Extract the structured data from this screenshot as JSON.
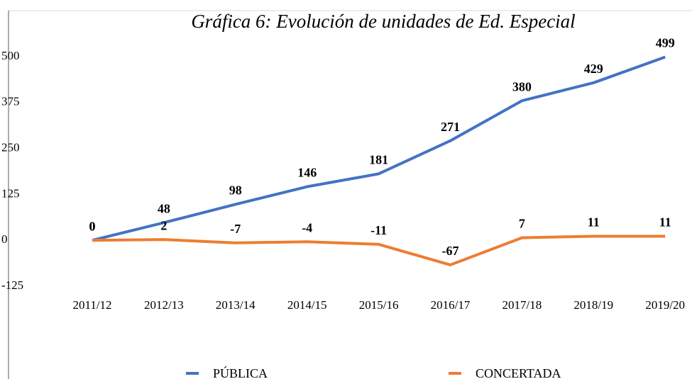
{
  "chart_data": {
    "type": "line",
    "title": "Gráfica 6: Evolución de unidades de Ed. Especial",
    "categories": [
      "2011/12",
      "2012/13",
      "2013/14",
      "2014/15",
      "2015/16",
      "2016/17",
      "2017/18",
      "2018/19",
      "2019/20"
    ],
    "series": [
      {
        "name": "PÚBLICA",
        "color": "#4472c4",
        "values": [
          0,
          48,
          98,
          146,
          181,
          271,
          380,
          429,
          499
        ]
      },
      {
        "name": "CONCERTADA",
        "color": "#ed7d31",
        "values": [
          0,
          2,
          -7,
          -4,
          -11,
          -67,
          7,
          11,
          11
        ]
      }
    ],
    "ylim": [
      -125,
      500
    ],
    "yticks": [
      -125,
      0,
      125,
      250,
      375,
      500
    ],
    "grid": false,
    "legend": "bottom"
  }
}
